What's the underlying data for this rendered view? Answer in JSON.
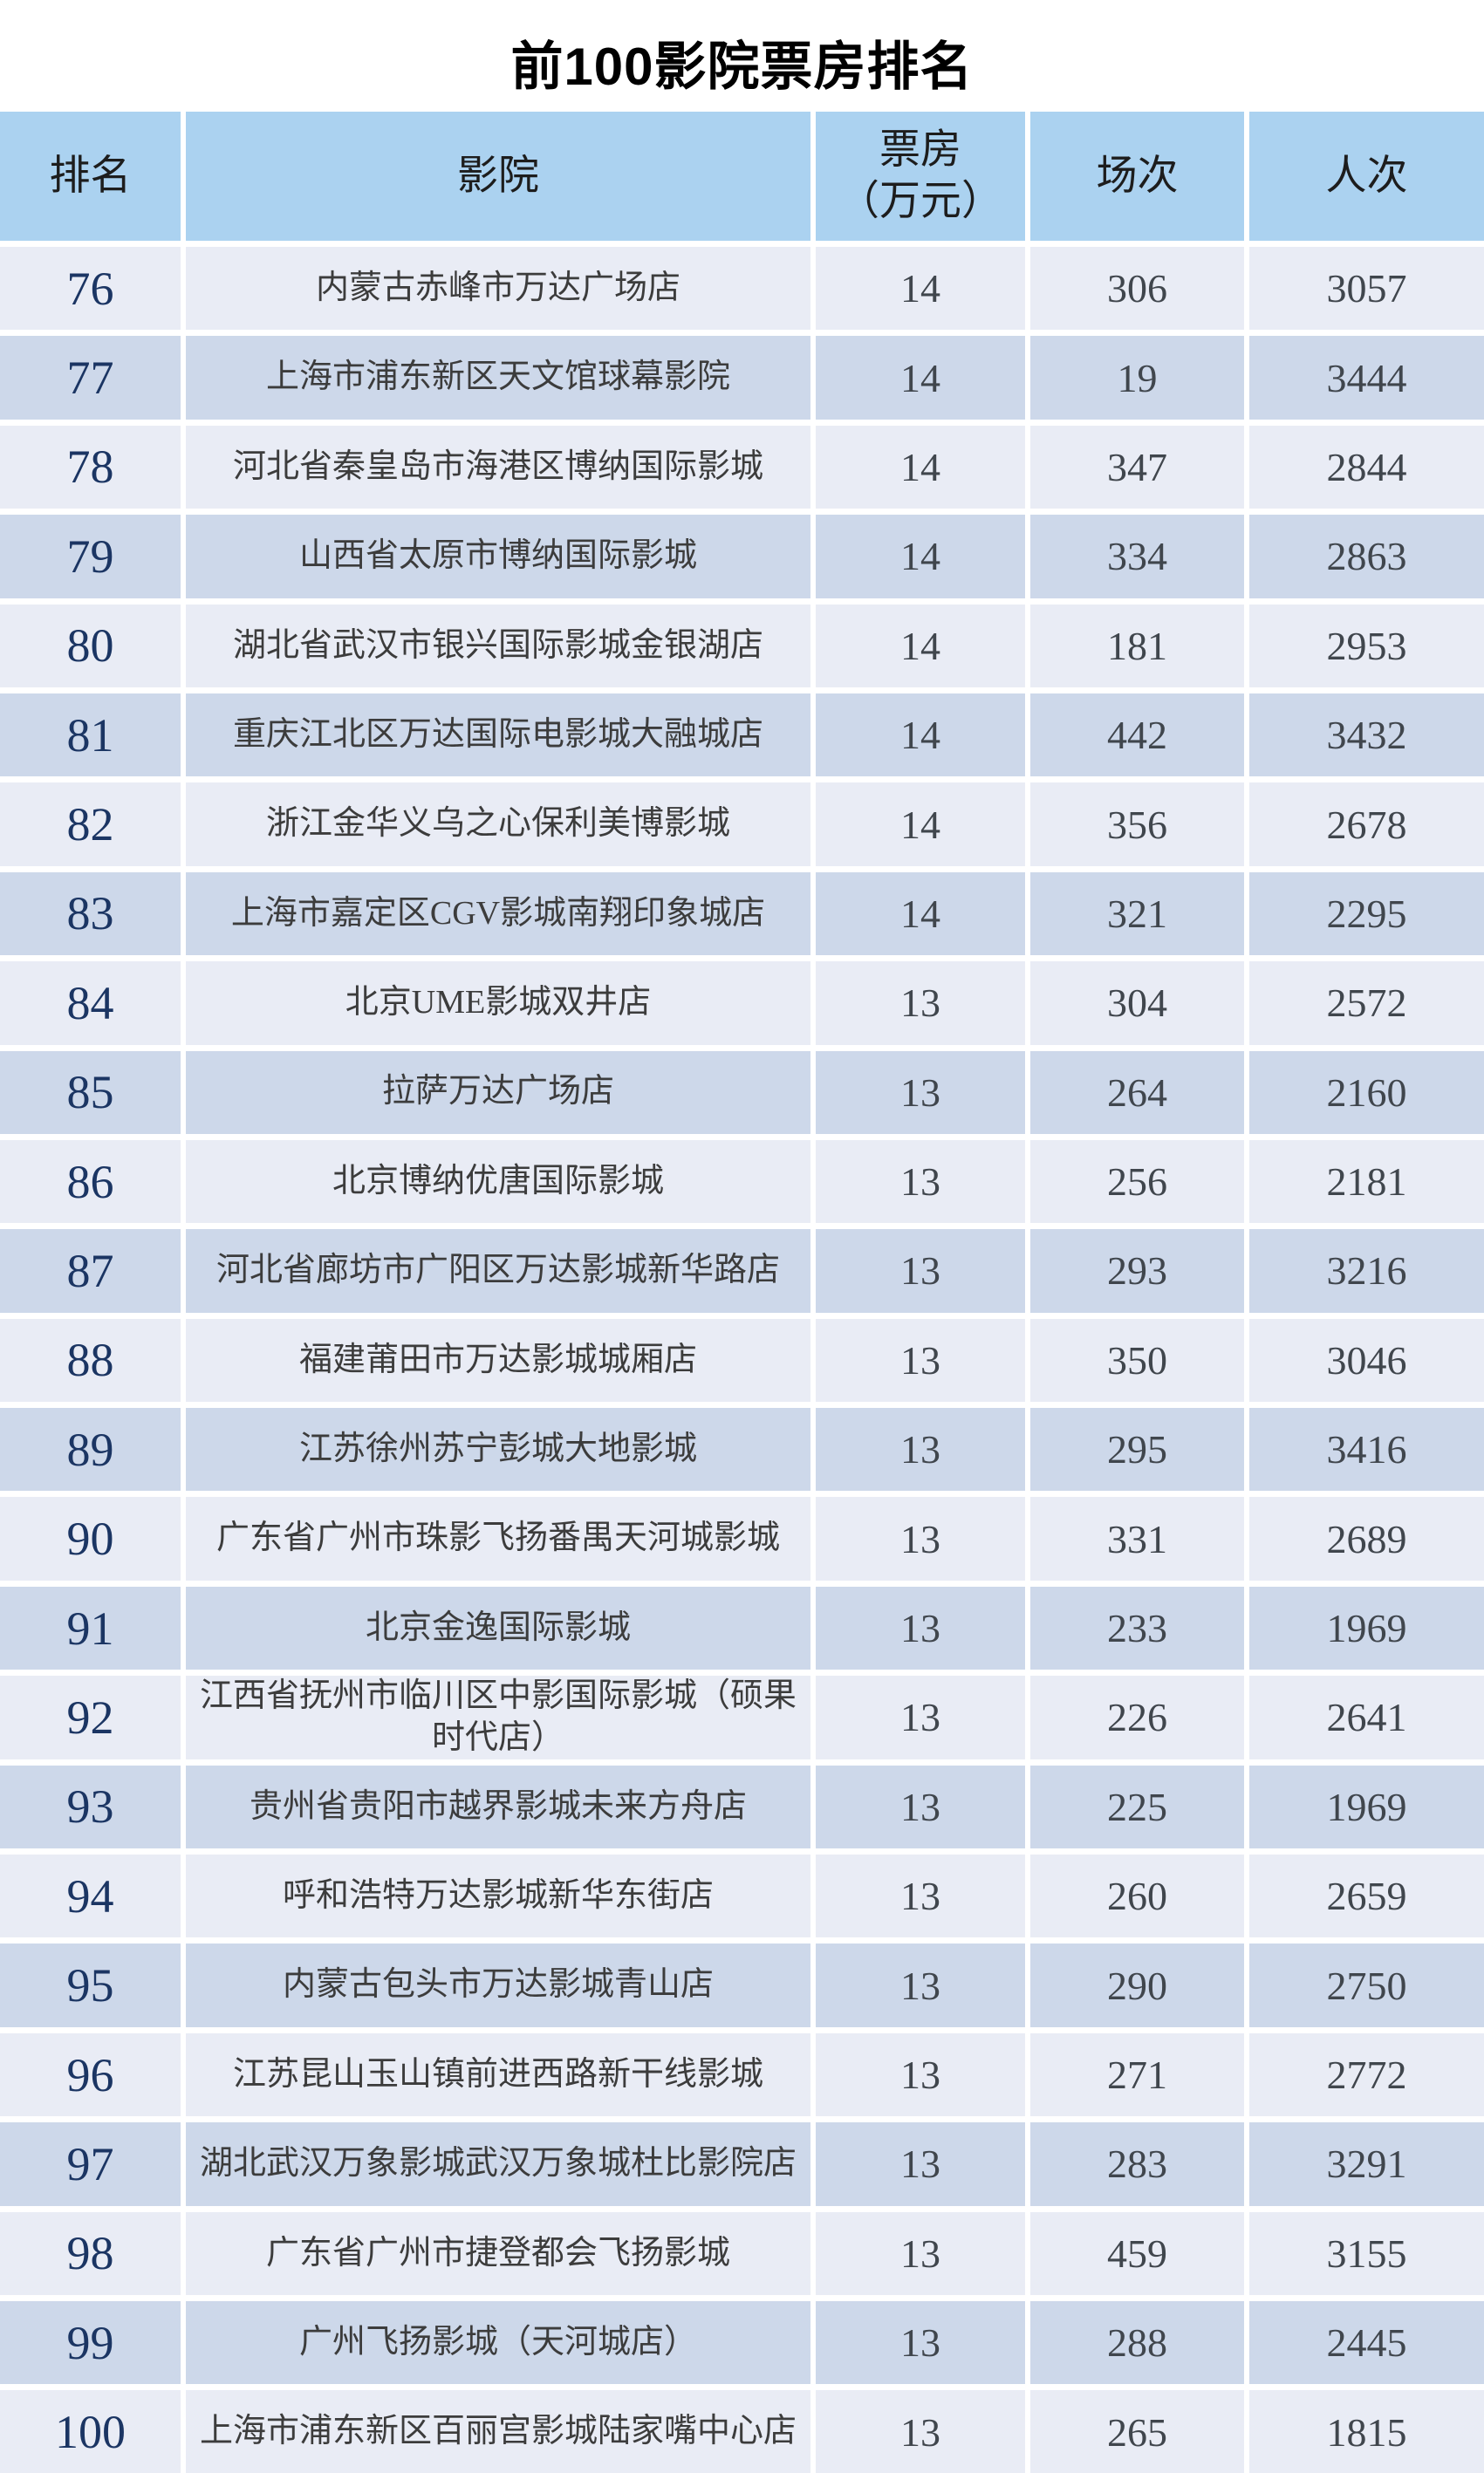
{
  "title": "前100影院票房排名",
  "colors": {
    "header_bg": "#ABD2F0",
    "row_light": "#E9ECF5",
    "row_dark": "#CDD8EA",
    "gap": "#FFFFFF",
    "title_text": "#000000",
    "rank_text": "#1B3563",
    "body_text": "#3C3C3C",
    "number_text": "#40464D"
  },
  "table": {
    "columns": [
      {
        "key": "rank",
        "label": "排名"
      },
      {
        "key": "cinema",
        "label": "影院"
      },
      {
        "key": "boxoffice",
        "label": "票房\n（万元）"
      },
      {
        "key": "sessions",
        "label": "场次"
      },
      {
        "key": "admissions",
        "label": "人次"
      }
    ],
    "rows": [
      {
        "rank": "76",
        "cinema": "内蒙古赤峰市万达广场店",
        "boxoffice": "14",
        "sessions": "306",
        "admissions": "3057"
      },
      {
        "rank": "77",
        "cinema": "上海市浦东新区天文馆球幕影院",
        "boxoffice": "14",
        "sessions": "19",
        "admissions": "3444"
      },
      {
        "rank": "78",
        "cinema": "河北省秦皇岛市海港区博纳国际影城",
        "boxoffice": "14",
        "sessions": "347",
        "admissions": "2844"
      },
      {
        "rank": "79",
        "cinema": "山西省太原市博纳国际影城",
        "boxoffice": "14",
        "sessions": "334",
        "admissions": "2863"
      },
      {
        "rank": "80",
        "cinema": "湖北省武汉市银兴国际影城金银湖店",
        "boxoffice": "14",
        "sessions": "181",
        "admissions": "2953"
      },
      {
        "rank": "81",
        "cinema": "重庆江北区万达国际电影城大融城店",
        "boxoffice": "14",
        "sessions": "442",
        "admissions": "3432"
      },
      {
        "rank": "82",
        "cinema": "浙江金华义乌之心保利美博影城",
        "boxoffice": "14",
        "sessions": "356",
        "admissions": "2678"
      },
      {
        "rank": "83",
        "cinema": "上海市嘉定区CGV影城南翔印象城店",
        "boxoffice": "14",
        "sessions": "321",
        "admissions": "2295"
      },
      {
        "rank": "84",
        "cinema": "北京UME影城双井店",
        "boxoffice": "13",
        "sessions": "304",
        "admissions": "2572"
      },
      {
        "rank": "85",
        "cinema": "拉萨万达广场店",
        "boxoffice": "13",
        "sessions": "264",
        "admissions": "2160"
      },
      {
        "rank": "86",
        "cinema": "北京博纳优唐国际影城",
        "boxoffice": "13",
        "sessions": "256",
        "admissions": "2181"
      },
      {
        "rank": "87",
        "cinema": "河北省廊坊市广阳区万达影城新华路店",
        "boxoffice": "13",
        "sessions": "293",
        "admissions": "3216"
      },
      {
        "rank": "88",
        "cinema": "福建莆田市万达影城城厢店",
        "boxoffice": "13",
        "sessions": "350",
        "admissions": "3046"
      },
      {
        "rank": "89",
        "cinema": "江苏徐州苏宁彭城大地影城",
        "boxoffice": "13",
        "sessions": "295",
        "admissions": "3416"
      },
      {
        "rank": "90",
        "cinema": "广东省广州市珠影飞扬番禺天河城影城",
        "boxoffice": "13",
        "sessions": "331",
        "admissions": "2689"
      },
      {
        "rank": "91",
        "cinema": "北京金逸国际影城",
        "boxoffice": "13",
        "sessions": "233",
        "admissions": "1969"
      },
      {
        "rank": "92",
        "cinema": "江西省抚州市临川区中影国际影城（硕果时代店）",
        "boxoffice": "13",
        "sessions": "226",
        "admissions": "2641"
      },
      {
        "rank": "93",
        "cinema": "贵州省贵阳市越界影城未来方舟店",
        "boxoffice": "13",
        "sessions": "225",
        "admissions": "1969"
      },
      {
        "rank": "94",
        "cinema": "呼和浩特万达影城新华东街店",
        "boxoffice": "13",
        "sessions": "260",
        "admissions": "2659"
      },
      {
        "rank": "95",
        "cinema": "内蒙古包头市万达影城青山店",
        "boxoffice": "13",
        "sessions": "290",
        "admissions": "2750"
      },
      {
        "rank": "96",
        "cinema": "江苏昆山玉山镇前进西路新干线影城",
        "boxoffice": "13",
        "sessions": "271",
        "admissions": "2772"
      },
      {
        "rank": "97",
        "cinema": "湖北武汉万象影城武汉万象城杜比影院店",
        "boxoffice": "13",
        "sessions": "283",
        "admissions": "3291"
      },
      {
        "rank": "98",
        "cinema": "广东省广州市捷登都会飞扬影城",
        "boxoffice": "13",
        "sessions": "459",
        "admissions": "3155"
      },
      {
        "rank": "99",
        "cinema": "广州飞扬影城（天河城店）",
        "boxoffice": "13",
        "sessions": "288",
        "admissions": "2445"
      },
      {
        "rank": "100",
        "cinema": "上海市浦东新区百丽宫影城陆家嘴中心店",
        "boxoffice": "13",
        "sessions": "265",
        "admissions": "1815"
      }
    ]
  }
}
